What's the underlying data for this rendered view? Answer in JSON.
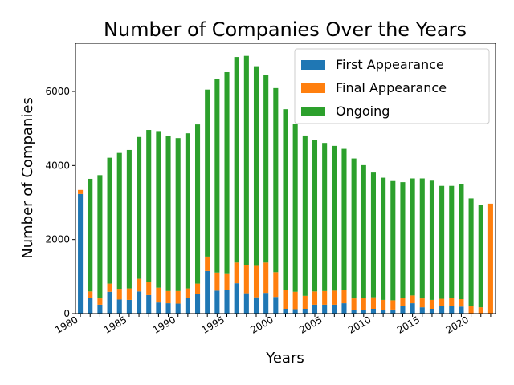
{
  "chart_data": {
    "type": "bar",
    "stacked": true,
    "title": "Number of Companies Over the Years",
    "xlabel": "Years",
    "ylabel": "Number of Companies",
    "ylim": [
      0,
      7300
    ],
    "yticks": [
      0,
      2000,
      4000,
      6000
    ],
    "xtick_labels": [
      "1980",
      "1985",
      "1990",
      "1995",
      "2000",
      "2005",
      "2010",
      "2015",
      "2020"
    ],
    "legend_position": "top-right",
    "categories": [
      "1980",
      "1981",
      "1982",
      "1983",
      "1984",
      "1985",
      "1986",
      "1987",
      "1988",
      "1989",
      "1990",
      "1991",
      "1992",
      "1993",
      "1994",
      "1995",
      "1996",
      "1997",
      "1998",
      "1999",
      "2000",
      "2001",
      "2002",
      "2003",
      "2004",
      "2005",
      "2006",
      "2007",
      "2008",
      "2009",
      "2010",
      "2011",
      "2012",
      "2013",
      "2014",
      "2015",
      "2016",
      "2017",
      "2018",
      "2019",
      "2020",
      "2021",
      "2022"
    ],
    "series": [
      {
        "name": "First Appearance",
        "color": "#1f77b4",
        "values": [
          3230,
          420,
          240,
          590,
          380,
          370,
          600,
          500,
          300,
          280,
          270,
          420,
          520,
          1150,
          620,
          630,
          820,
          550,
          440,
          560,
          450,
          130,
          120,
          130,
          240,
          240,
          240,
          280,
          100,
          90,
          130,
          100,
          110,
          200,
          280,
          170,
          130,
          200,
          210,
          190,
          0,
          0,
          0
        ]
      },
      {
        "name": "Final Appearance",
        "color": "#ff7f0e",
        "values": [
          110,
          180,
          170,
          220,
          290,
          310,
          340,
          360,
          400,
          330,
          340,
          260,
          290,
          390,
          490,
          460,
          560,
          760,
          850,
          820,
          670,
          500,
          470,
          350,
          360,
          370,
          380,
          360,
          310,
          340,
          310,
          270,
          250,
          220,
          210,
          240,
          240,
          200,
          220,
          200,
          210,
          170,
          2970
        ]
      },
      {
        "name": "Ongoing",
        "color": "#2ca02c",
        "values": [
          0,
          3040,
          3330,
          3400,
          3670,
          3740,
          3830,
          4100,
          4230,
          4190,
          4130,
          4190,
          4300,
          4510,
          5230,
          5430,
          5550,
          5650,
          5390,
          5060,
          4970,
          4890,
          4540,
          4330,
          4100,
          4000,
          3910,
          3810,
          3780,
          3580,
          3370,
          3300,
          3220,
          3130,
          3160,
          3240,
          3220,
          3050,
          3020,
          3100,
          2900,
          2760,
          0
        ]
      }
    ]
  }
}
